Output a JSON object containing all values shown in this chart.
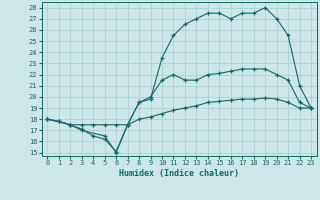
{
  "xlabel": "Humidex (Indice chaleur)",
  "background_color": "#cce8e8",
  "grid_color": "#aacece",
  "line_color": "#1a6666",
  "xlim": [
    -0.5,
    23.5
  ],
  "ylim": [
    14.7,
    28.5
  ],
  "x_ticks": [
    0,
    1,
    2,
    3,
    4,
    5,
    6,
    7,
    8,
    9,
    10,
    11,
    12,
    13,
    14,
    15,
    16,
    17,
    18,
    19,
    20,
    21,
    22,
    23
  ],
  "y_ticks": [
    15,
    16,
    17,
    18,
    19,
    20,
    21,
    22,
    23,
    24,
    25,
    26,
    27,
    28
  ],
  "series1_x": [
    0,
    1,
    2,
    3,
    4,
    5,
    6,
    7,
    8,
    9,
    10,
    11,
    12,
    13,
    14,
    15,
    16,
    17,
    18,
    19,
    20,
    21,
    22,
    23
  ],
  "series1_y": [
    18.0,
    17.8,
    17.5,
    17.1,
    16.5,
    16.2,
    15.1,
    17.5,
    19.5,
    20.0,
    21.5,
    22.0,
    21.5,
    21.5,
    22.0,
    22.1,
    22.3,
    22.5,
    22.5,
    22.5,
    22.0,
    21.5,
    19.5,
    19.0
  ],
  "series2_x": [
    0,
    1,
    2,
    3,
    4,
    5,
    6,
    7,
    8,
    9,
    10,
    11,
    12,
    13,
    14,
    15,
    16,
    17,
    18,
    19,
    20,
    21,
    22,
    23
  ],
  "series2_y": [
    18.0,
    17.8,
    17.5,
    17.5,
    17.5,
    17.5,
    17.5,
    17.5,
    18.0,
    18.2,
    18.5,
    18.8,
    19.0,
    19.2,
    19.5,
    19.6,
    19.7,
    19.8,
    19.8,
    19.9,
    19.8,
    19.5,
    19.0,
    19.0
  ],
  "series3_x": [
    0,
    2,
    3,
    5,
    6,
    7,
    8,
    9,
    10,
    11,
    12,
    13,
    14,
    15,
    16,
    17,
    18,
    19,
    20,
    21,
    22,
    23
  ],
  "series3_y": [
    18.0,
    17.5,
    17.0,
    16.5,
    15.0,
    17.5,
    19.5,
    19.8,
    23.5,
    25.5,
    26.5,
    27.0,
    27.5,
    27.5,
    27.0,
    27.5,
    27.5,
    28.0,
    27.0,
    25.5,
    21.0,
    19.0
  ]
}
